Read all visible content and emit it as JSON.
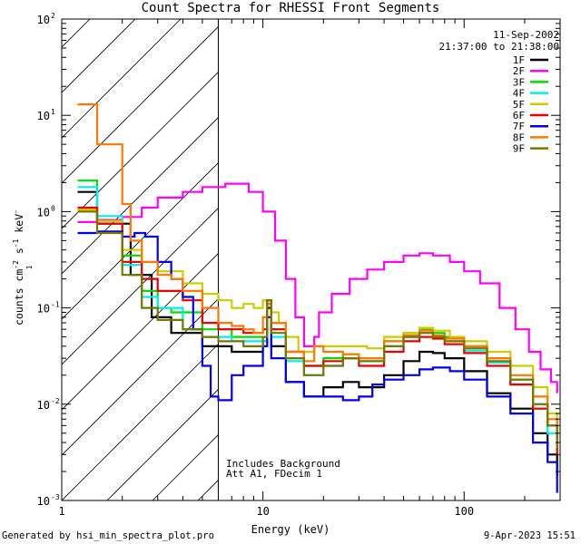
{
  "chart_data": {
    "type": "line",
    "title": "Count Spectra for RHESSI Front Segments",
    "date": "11-Sep-2002",
    "time_range": "21:37:00 to 21:38:00",
    "xlabel": "Energy (keV)",
    "ylabel_parts": [
      "counts cm",
      "-2",
      " s",
      "-1",
      " keV",
      "-1"
    ],
    "xscale": "log",
    "yscale": "log",
    "xlim": [
      1,
      300
    ],
    "ylim": [
      0.001,
      100
    ],
    "x_tick_labels": [
      {
        "value": 1,
        "label": "1"
      },
      {
        "value": 10,
        "label": "10"
      },
      {
        "value": 100,
        "label": "100"
      }
    ],
    "y_tick_labels": [
      {
        "value": 0.001,
        "base": "10",
        "exp": "-3"
      },
      {
        "value": 0.01,
        "base": "10",
        "exp": "-2"
      },
      {
        "value": 0.1,
        "base": "10",
        "exp": "-1"
      },
      {
        "value": 1,
        "base": "10",
        "exp": "0"
      },
      {
        "value": 10,
        "base": "10",
        "exp": "1"
      },
      {
        "value": 100,
        "base": "10",
        "exp": "2"
      }
    ],
    "hatched_region": {
      "x_min": 1,
      "x_max": 6,
      "label": "excluded low-energy region"
    },
    "annotations": [
      "Includes Background",
      "Att A1, FDecim 1"
    ],
    "legend_location": "top-right",
    "series": [
      {
        "name": "1F",
        "color": "#000000",
        "points": [
          [
            1.2,
            1.6
          ],
          [
            1.5,
            0.75
          ],
          [
            2.2,
            0.22
          ],
          [
            2.8,
            0.08
          ],
          [
            3.5,
            0.055
          ],
          [
            5,
            0.04
          ],
          [
            7,
            0.035
          ],
          [
            8.5,
            0.035
          ],
          [
            10,
            0.045
          ],
          [
            10.5,
            0.1
          ],
          [
            11,
            0.04
          ],
          [
            13,
            0.017
          ],
          [
            16,
            0.012
          ],
          [
            20,
            0.015
          ],
          [
            25,
            0.017
          ],
          [
            30,
            0.015
          ],
          [
            40,
            0.02
          ],
          [
            50,
            0.028
          ],
          [
            60,
            0.035
          ],
          [
            70,
            0.034
          ],
          [
            80,
            0.03
          ],
          [
            100,
            0.022
          ],
          [
            130,
            0.013
          ],
          [
            170,
            0.009
          ],
          [
            220,
            0.005
          ],
          [
            260,
            0.003
          ],
          [
            290,
            0.0018
          ]
        ]
      },
      {
        "name": "2F",
        "color": "#ff00ff",
        "points": [
          [
            1.2,
            0.78
          ],
          [
            1.5,
            0.82
          ],
          [
            2,
            0.88
          ],
          [
            2.5,
            1.1
          ],
          [
            3,
            1.4
          ],
          [
            4,
            1.6
          ],
          [
            5,
            1.8
          ],
          [
            6.5,
            1.95
          ],
          [
            7.5,
            1.95
          ],
          [
            8.5,
            1.6
          ],
          [
            10,
            1.0
          ],
          [
            11.5,
            0.5
          ],
          [
            13,
            0.2
          ],
          [
            14.5,
            0.08
          ],
          [
            16,
            0.04
          ],
          [
            18,
            0.05
          ],
          [
            19,
            0.09
          ],
          [
            22,
            0.14
          ],
          [
            27,
            0.2
          ],
          [
            33,
            0.25
          ],
          [
            40,
            0.3
          ],
          [
            50,
            0.35
          ],
          [
            60,
            0.37
          ],
          [
            70,
            0.35
          ],
          [
            85,
            0.3
          ],
          [
            100,
            0.24
          ],
          [
            120,
            0.18
          ],
          [
            150,
            0.1
          ],
          [
            180,
            0.06
          ],
          [
            210,
            0.035
          ],
          [
            240,
            0.023
          ],
          [
            270,
            0.017
          ],
          [
            290,
            0.013
          ]
        ]
      },
      {
        "name": "3F",
        "color": "#00dd00",
        "points": [
          [
            1.2,
            2.1
          ],
          [
            1.5,
            0.8
          ],
          [
            2,
            0.35
          ],
          [
            2.5,
            0.15
          ],
          [
            3,
            0.1
          ],
          [
            3.5,
            0.09
          ],
          [
            5,
            0.06
          ],
          [
            7,
            0.05
          ],
          [
            9,
            0.05
          ],
          [
            10.5,
            0.12
          ],
          [
            11,
            0.06
          ],
          [
            13,
            0.03
          ],
          [
            16,
            0.025
          ],
          [
            20,
            0.03
          ],
          [
            25,
            0.033
          ],
          [
            30,
            0.03
          ],
          [
            40,
            0.045
          ],
          [
            50,
            0.055
          ],
          [
            60,
            0.06
          ],
          [
            70,
            0.055
          ],
          [
            80,
            0.05
          ],
          [
            100,
            0.04
          ],
          [
            130,
            0.03
          ],
          [
            170,
            0.018
          ],
          [
            220,
            0.01
          ],
          [
            260,
            0.006
          ],
          [
            290,
            0.004
          ]
        ]
      },
      {
        "name": "4F",
        "color": "#00eeee",
        "points": [
          [
            1.2,
            1.8
          ],
          [
            1.5,
            0.9
          ],
          [
            2,
            0.28
          ],
          [
            2.5,
            0.13
          ],
          [
            3,
            0.1
          ],
          [
            4,
            0.06
          ],
          [
            5,
            0.05
          ],
          [
            7,
            0.045
          ],
          [
            9,
            0.045
          ],
          [
            10.5,
            0.11
          ],
          [
            11,
            0.05
          ],
          [
            13,
            0.028
          ],
          [
            16,
            0.02
          ],
          [
            20,
            0.025
          ],
          [
            25,
            0.03
          ],
          [
            30,
            0.028
          ],
          [
            40,
            0.04
          ],
          [
            50,
            0.05
          ],
          [
            60,
            0.055
          ],
          [
            70,
            0.05
          ],
          [
            80,
            0.045
          ],
          [
            100,
            0.036
          ],
          [
            130,
            0.027
          ],
          [
            170,
            0.016
          ],
          [
            220,
            0.009
          ],
          [
            260,
            0.005
          ],
          [
            290,
            0.003
          ]
        ]
      },
      {
        "name": "5F",
        "color": "#cccc00",
        "points": [
          [
            1.2,
            1.05
          ],
          [
            1.5,
            0.8
          ],
          [
            2,
            0.4
          ],
          [
            2.5,
            0.3
          ],
          [
            3,
            0.24
          ],
          [
            4,
            0.18
          ],
          [
            5,
            0.14
          ],
          [
            6,
            0.12
          ],
          [
            7,
            0.1
          ],
          [
            8,
            0.11
          ],
          [
            9,
            0.1
          ],
          [
            10,
            0.12
          ],
          [
            11,
            0.09
          ],
          [
            12,
            0.07
          ],
          [
            13,
            0.05
          ],
          [
            15,
            0.035
          ],
          [
            18,
            0.04
          ],
          [
            22,
            0.04
          ],
          [
            27,
            0.04
          ],
          [
            33,
            0.038
          ],
          [
            40,
            0.05
          ],
          [
            50,
            0.055
          ],
          [
            60,
            0.062
          ],
          [
            70,
            0.058
          ],
          [
            85,
            0.05
          ],
          [
            100,
            0.045
          ],
          [
            130,
            0.035
          ],
          [
            170,
            0.025
          ],
          [
            220,
            0.015
          ],
          [
            260,
            0.008
          ],
          [
            290,
            0.005
          ]
        ]
      },
      {
        "name": "6F",
        "color": "#ee0000",
        "points": [
          [
            1.2,
            1.1
          ],
          [
            1.5,
            0.75
          ],
          [
            2,
            0.3
          ],
          [
            2.5,
            0.2
          ],
          [
            3,
            0.15
          ],
          [
            4,
            0.12
          ],
          [
            5,
            0.07
          ],
          [
            6,
            0.06
          ],
          [
            8,
            0.055
          ],
          [
            10,
            0.06
          ],
          [
            10.5,
            0.12
          ],
          [
            11,
            0.06
          ],
          [
            13,
            0.035
          ],
          [
            16,
            0.025
          ],
          [
            20,
            0.028
          ],
          [
            25,
            0.03
          ],
          [
            30,
            0.025
          ],
          [
            40,
            0.035
          ],
          [
            50,
            0.045
          ],
          [
            60,
            0.05
          ],
          [
            70,
            0.048
          ],
          [
            80,
            0.042
          ],
          [
            100,
            0.034
          ],
          [
            130,
            0.025
          ],
          [
            170,
            0.016
          ],
          [
            220,
            0.009
          ],
          [
            260,
            0.006
          ],
          [
            290,
            0.003
          ]
        ]
      },
      {
        "name": "7F",
        "color": "#0000ee",
        "points": [
          [
            1.2,
            0.6
          ],
          [
            1.5,
            0.62
          ],
          [
            2,
            0.55
          ],
          [
            2.3,
            0.6
          ],
          [
            2.6,
            0.55
          ],
          [
            3,
            0.3
          ],
          [
            3.5,
            0.2
          ],
          [
            4,
            0.13
          ],
          [
            4.5,
            0.06
          ],
          [
            5,
            0.025
          ],
          [
            5.5,
            0.012
          ],
          [
            6,
            0.011
          ],
          [
            7,
            0.02
          ],
          [
            8,
            0.025
          ],
          [
            9,
            0.025
          ],
          [
            10,
            0.04
          ],
          [
            10.5,
            0.08
          ],
          [
            11,
            0.03
          ],
          [
            13,
            0.017
          ],
          [
            16,
            0.012
          ],
          [
            20,
            0.012
          ],
          [
            25,
            0.011
          ],
          [
            30,
            0.012
          ],
          [
            35,
            0.016
          ],
          [
            40,
            0.018
          ],
          [
            50,
            0.02
          ],
          [
            60,
            0.023
          ],
          [
            70,
            0.024
          ],
          [
            85,
            0.022
          ],
          [
            100,
            0.018
          ],
          [
            130,
            0.012
          ],
          [
            170,
            0.008
          ],
          [
            220,
            0.004
          ],
          [
            260,
            0.0025
          ],
          [
            290,
            0.0012
          ]
        ]
      },
      {
        "name": "8F",
        "color": "#ff7700",
        "points": [
          [
            1.2,
            13
          ],
          [
            1.5,
            5
          ],
          [
            2,
            1.2
          ],
          [
            2.2,
            0.5
          ],
          [
            2.5,
            0.3
          ],
          [
            3,
            0.22
          ],
          [
            3.5,
            0.2
          ],
          [
            4,
            0.15
          ],
          [
            5,
            0.1
          ],
          [
            6,
            0.07
          ],
          [
            7,
            0.065
          ],
          [
            8,
            0.06
          ],
          [
            9,
            0.055
          ],
          [
            10,
            0.08
          ],
          [
            10.5,
            0.11
          ],
          [
            11,
            0.07
          ],
          [
            13,
            0.035
          ],
          [
            16,
            0.028
          ],
          [
            18,
            0.04
          ],
          [
            20,
            0.035
          ],
          [
            25,
            0.033
          ],
          [
            30,
            0.03
          ],
          [
            40,
            0.045
          ],
          [
            50,
            0.052
          ],
          [
            60,
            0.058
          ],
          [
            70,
            0.052
          ],
          [
            80,
            0.048
          ],
          [
            100,
            0.04
          ],
          [
            130,
            0.03
          ],
          [
            170,
            0.02
          ],
          [
            220,
            0.012
          ],
          [
            260,
            0.007
          ],
          [
            290,
            0.004
          ]
        ]
      },
      {
        "name": "9F",
        "color": "#777700",
        "points": [
          [
            1.2,
            1.0
          ],
          [
            1.5,
            0.6
          ],
          [
            2,
            0.22
          ],
          [
            2.5,
            0.1
          ],
          [
            3,
            0.075
          ],
          [
            4,
            0.06
          ],
          [
            5,
            0.05
          ],
          [
            6,
            0.045
          ],
          [
            8,
            0.04
          ],
          [
            10,
            0.05
          ],
          [
            10.5,
            0.12
          ],
          [
            11,
            0.055
          ],
          [
            13,
            0.03
          ],
          [
            16,
            0.02
          ],
          [
            20,
            0.025
          ],
          [
            25,
            0.03
          ],
          [
            30,
            0.028
          ],
          [
            40,
            0.04
          ],
          [
            50,
            0.05
          ],
          [
            60,
            0.055
          ],
          [
            70,
            0.05
          ],
          [
            80,
            0.045
          ],
          [
            100,
            0.038
          ],
          [
            130,
            0.028
          ],
          [
            170,
            0.018
          ],
          [
            220,
            0.01
          ],
          [
            260,
            0.006
          ],
          [
            290,
            0.0035
          ]
        ]
      }
    ]
  },
  "annotation_text": {
    "line1": "Includes Background",
    "line2": "Att A1, FDecim 1"
  },
  "footer": {
    "left": "Generated by hsi_min_spectra_plot.pro",
    "right": "9-Apr-2023 15:51"
  }
}
